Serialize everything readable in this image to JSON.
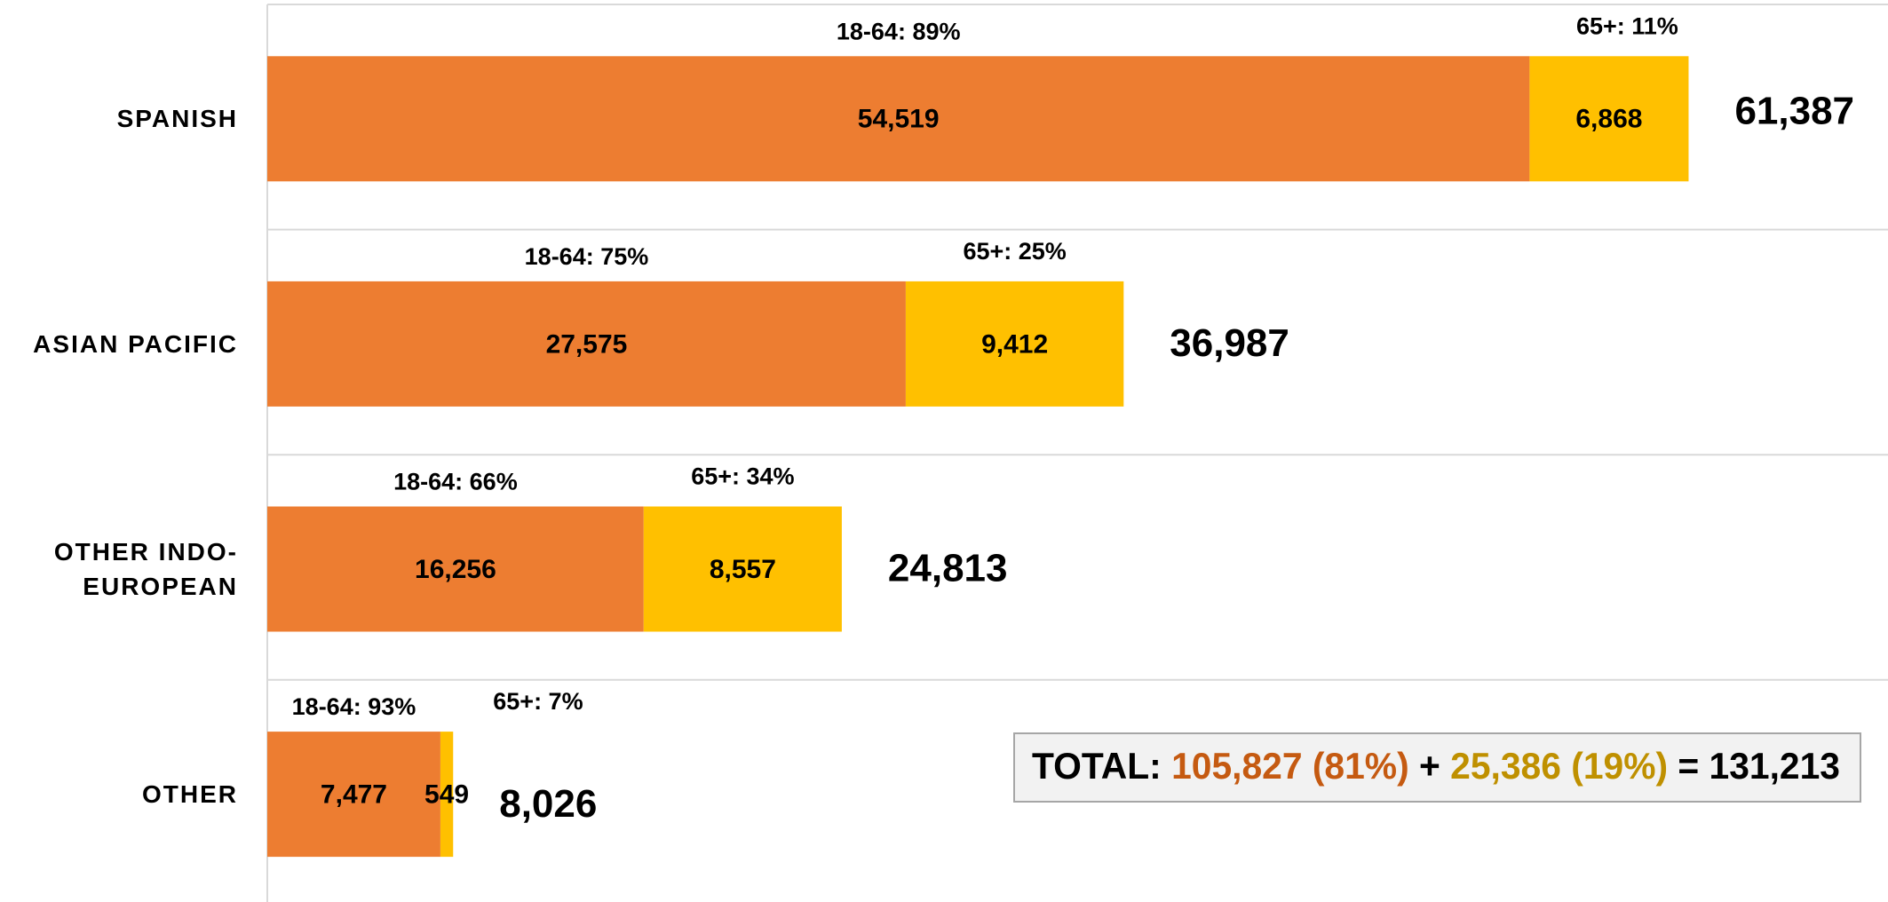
{
  "chart_data": {
    "type": "stacked-bar-horizontal",
    "categories": [
      "SPANISH",
      "ASIAN PACIFIC",
      "OTHER INDO-EUROPEAN",
      "OTHER"
    ],
    "series": [
      {
        "name": "18-64",
        "color": "#ED7D31",
        "values": [
          54519,
          27575,
          16256,
          7477
        ],
        "value_labels": [
          "54,519",
          "27,575",
          "16,256",
          "7,477"
        ],
        "share_labels": [
          "18-64: 89%",
          "18-64: 75%",
          "18-64: 66%",
          "18-64: 93%"
        ]
      },
      {
        "name": "65+",
        "color": "#FFC000",
        "values": [
          6868,
          9412,
          8557,
          549
        ],
        "value_labels": [
          "6,868",
          "9,412",
          "8,557",
          "549"
        ],
        "share_labels": [
          "65+: 11%",
          "65+: 25%",
          "65+: 34%",
          "65+: 7%"
        ]
      }
    ],
    "totals": [
      61387,
      36987,
      24813,
      8026
    ],
    "total_labels": [
      "61,387",
      "36,987",
      "24,813",
      "8,026"
    ],
    "xlim": [
      0,
      70000
    ],
    "summary": {
      "prefix": "TOTAL:",
      "first": "105,827 (81%)",
      "first_color": "#C55A11",
      "plus": "+",
      "second": "25,386 (19%)",
      "second_color": "#BF9000",
      "result": "= 131,213"
    }
  }
}
